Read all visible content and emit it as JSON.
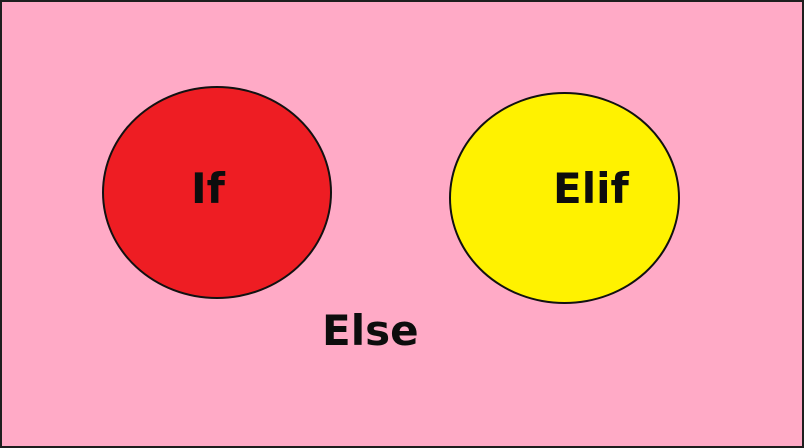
{
  "diagram": {
    "background_color": "#ffaac6",
    "nodes": [
      {
        "label": "If",
        "fill_color": "#ee1d23"
      },
      {
        "label": "Elif",
        "fill_color": "#fff200"
      }
    ],
    "outside_label": "Else"
  }
}
